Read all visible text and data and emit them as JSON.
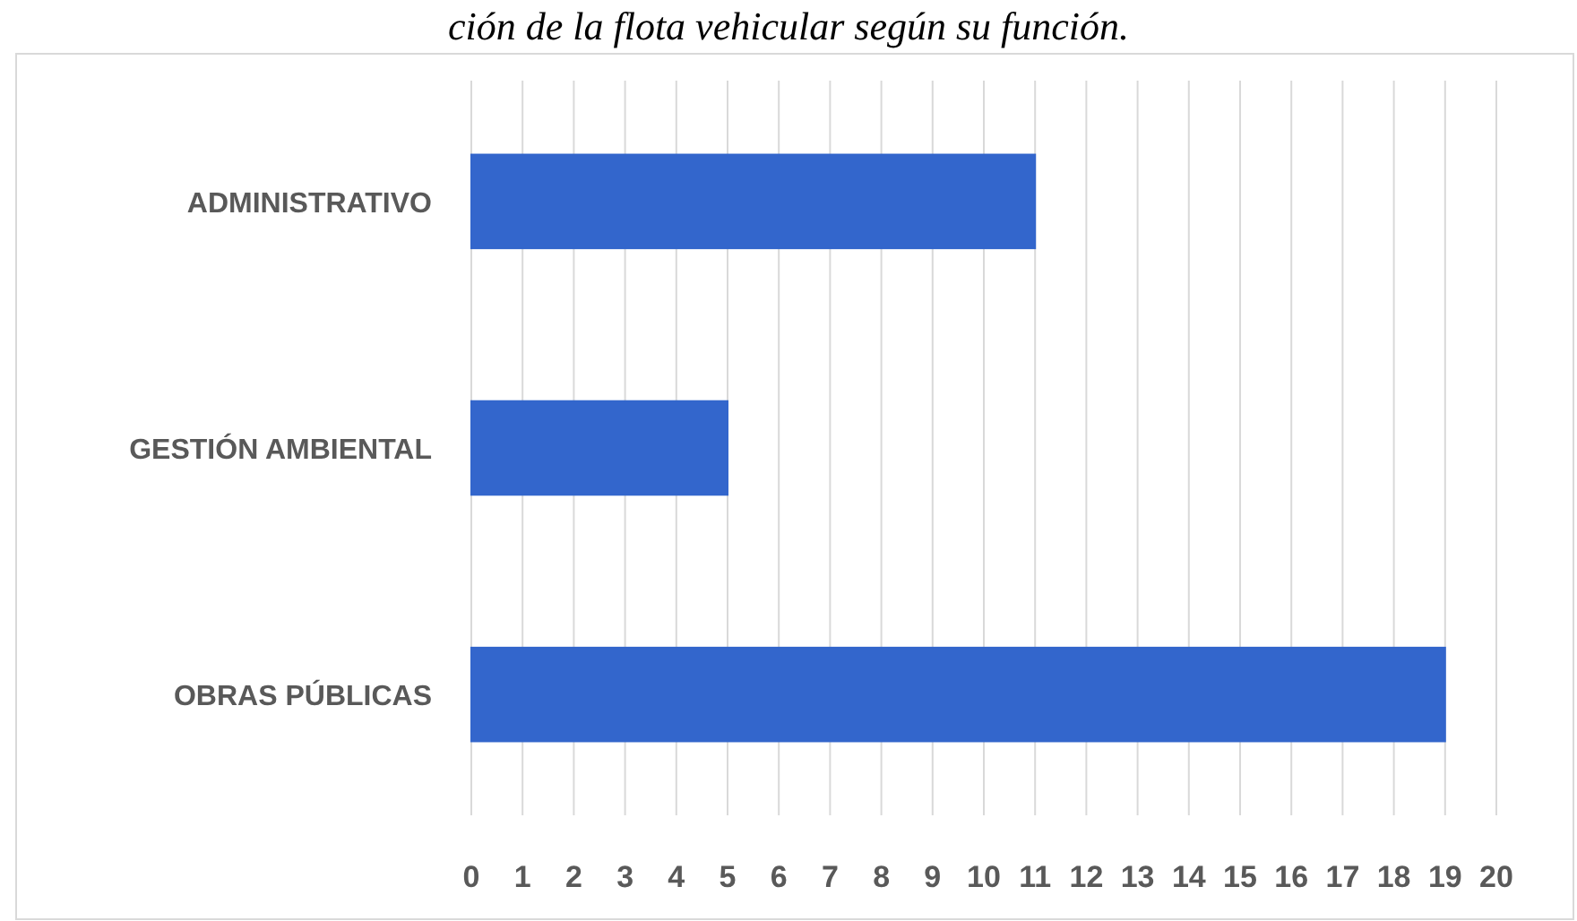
{
  "chart_data": {
    "type": "bar",
    "orientation": "horizontal",
    "title": "ción de la flota vehicular según su función.",
    "categories": [
      "ADMINISTRATIVO",
      "GESTIÓN AMBIENTAL",
      "OBRAS PÚBLICAS"
    ],
    "values": [
      11,
      5,
      19
    ],
    "color": "#3366cc",
    "xlim": [
      0,
      20
    ],
    "xticks": [
      0,
      1,
      2,
      3,
      4,
      5,
      6,
      7,
      8,
      9,
      10,
      11,
      12,
      13,
      14,
      15,
      16,
      17,
      18,
      19,
      20
    ],
    "grid": "x"
  }
}
